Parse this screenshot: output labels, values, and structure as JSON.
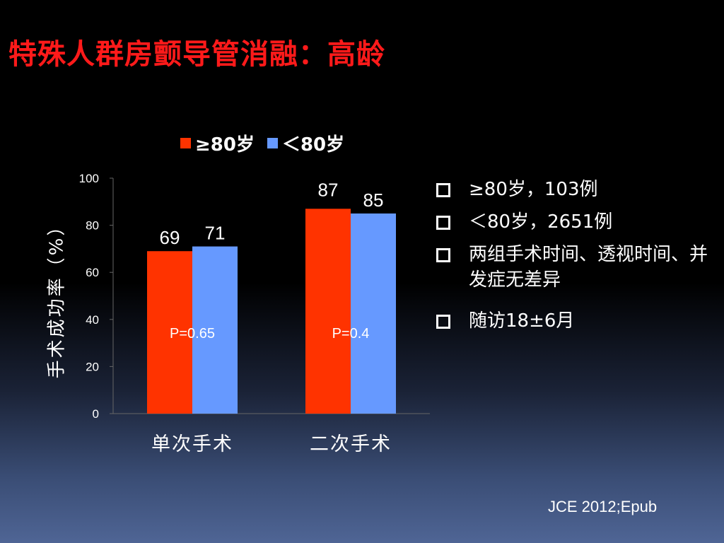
{
  "slide": {
    "title": "特殊人群房颤导管消融：高龄",
    "citation": "JCE 2012;Epub"
  },
  "bullets": [
    "≥80岁，103例",
    "＜80岁，2651例",
    "两组手术时间、透视时间、并发症无差异",
    "随访18±6月"
  ],
  "colors": {
    "title": "#ff1a1a",
    "series1": "#ff3300",
    "series2": "#6699ff"
  },
  "chart_data": {
    "type": "bar",
    "categories": [
      "单次手术",
      "二次手术"
    ],
    "series": [
      {
        "name": "≥80岁",
        "values": [
          69,
          87
        ],
        "color": "#ff3300"
      },
      {
        "name": "＜80岁",
        "values": [
          71,
          85
        ],
        "color": "#6699ff"
      }
    ],
    "ylabel": "手术成功率（%）",
    "ylim": [
      0,
      100
    ],
    "yticks": [
      0,
      20,
      40,
      60,
      80,
      100
    ],
    "annotations": [
      "P=0.65",
      "P=0.4"
    ],
    "legend": "top",
    "grid": false
  }
}
